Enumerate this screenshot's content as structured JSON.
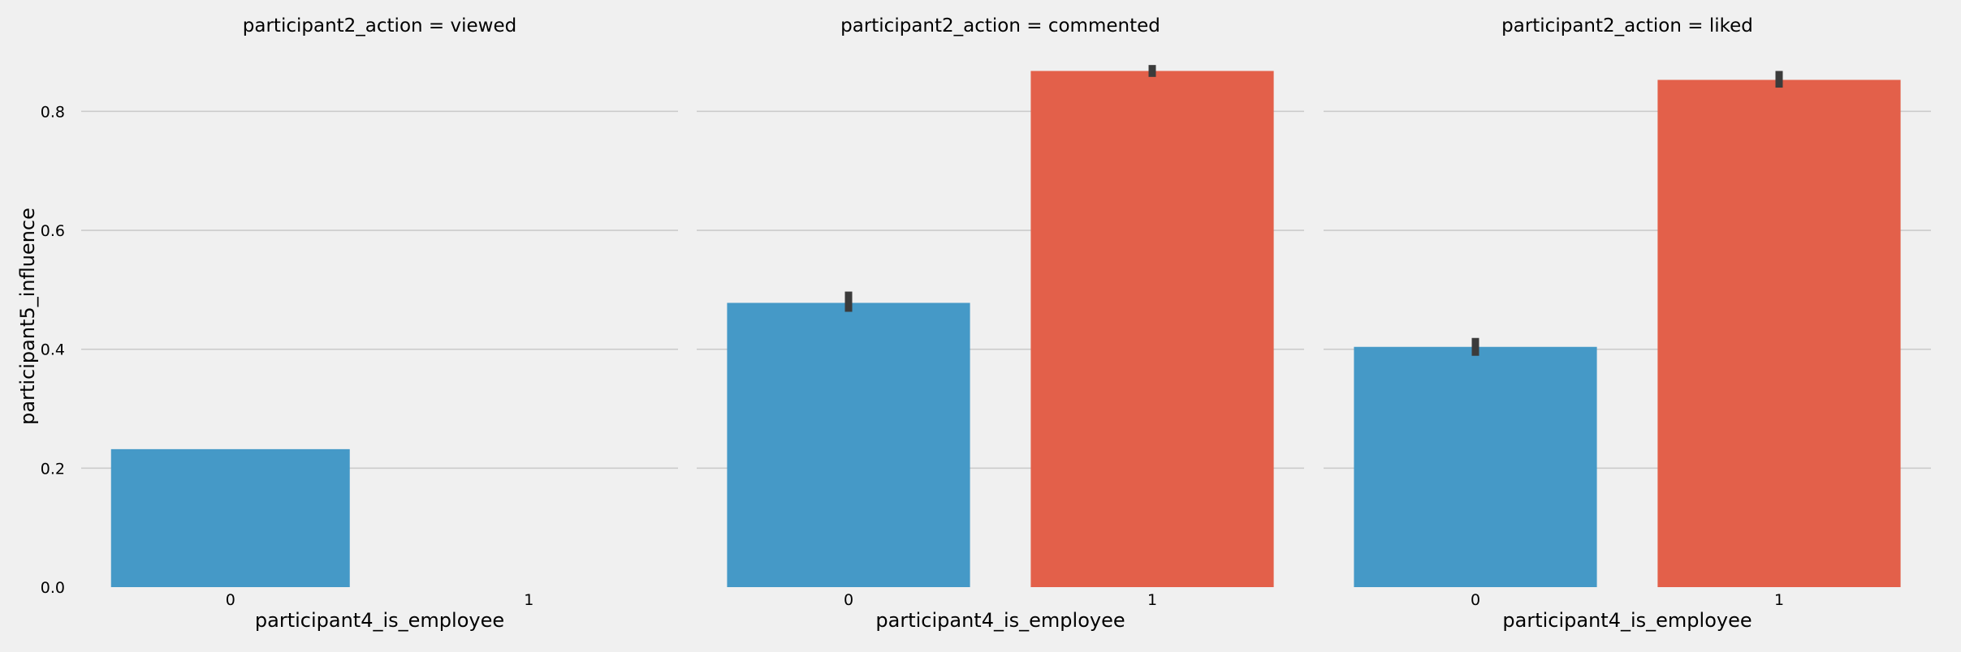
{
  "chart_data": [
    {
      "type": "bar",
      "title": "participant2_action = viewed",
      "xlabel": "participant4_is_employee",
      "ylabel": "participant5_influence",
      "categories": [
        "0",
        "1"
      ],
      "values": [
        0.232,
        null
      ],
      "error": [
        null,
        null
      ],
      "ylim": [
        0,
        0.9
      ],
      "yticks": [
        "0.0",
        "0.2",
        "0.4",
        "0.6",
        "0.8"
      ],
      "grid": true,
      "colors": [
        "#4599c7",
        "#e3604a"
      ]
    },
    {
      "type": "bar",
      "title": "participant2_action = commented",
      "xlabel": "participant4_is_employee",
      "ylabel": "",
      "categories": [
        "0",
        "1"
      ],
      "values": [
        0.478,
        0.868
      ],
      "error": [
        [
          0.463,
          0.497
        ],
        [
          0.858,
          0.878
        ]
      ],
      "ylim": [
        0,
        0.9
      ],
      "yticks": [],
      "grid": true,
      "colors": [
        "#4599c7",
        "#e3604a"
      ]
    },
    {
      "type": "bar",
      "title": "participant2_action = liked",
      "xlabel": "participant4_is_employee",
      "ylabel": "",
      "categories": [
        "0",
        "1"
      ],
      "values": [
        0.404,
        0.853
      ],
      "error": [
        [
          0.389,
          0.419
        ],
        [
          0.84,
          0.868
        ]
      ],
      "ylim": [
        0,
        0.9
      ],
      "yticks": [],
      "grid": true,
      "colors": [
        "#4599c7",
        "#e3604a"
      ]
    }
  ]
}
